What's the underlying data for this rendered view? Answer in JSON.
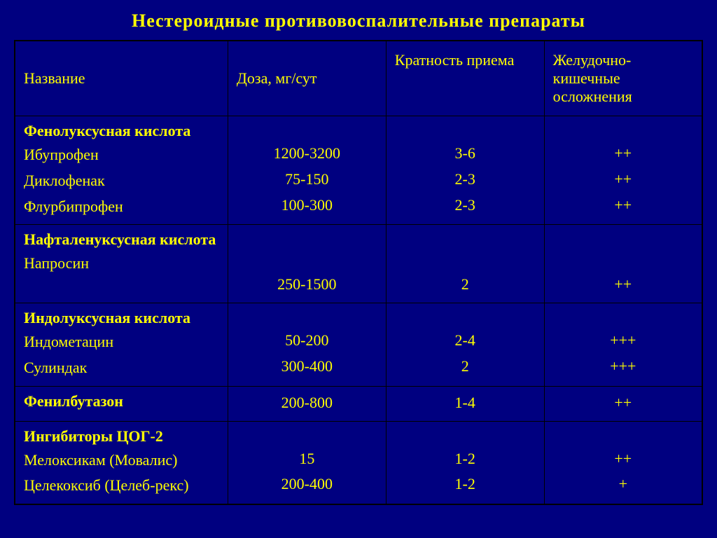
{
  "slide": {
    "title": "Нестероидные противовоспалительные препараты",
    "background_color": "#000080",
    "text_color": "#ffff00",
    "border_color": "#000000",
    "title_fontsize": 26,
    "cell_fontsize": 22,
    "font_family": "Times New Roman"
  },
  "table": {
    "columns": [
      {
        "key": "name",
        "label": "Название",
        "width_pct": 31,
        "align": "left"
      },
      {
        "key": "dose",
        "label": "Доза, мг/сут",
        "width_pct": 23,
        "align": "center"
      },
      {
        "key": "freq",
        "label": "Кратность приема",
        "width_pct": 23,
        "align": "center"
      },
      {
        "key": "gi",
        "label": "Желудочно-кишечные осложнения",
        "width_pct": 23,
        "align": "center"
      }
    ],
    "groups": [
      {
        "header": "Фенолуксусная кислота",
        "header_bold": true,
        "drugs": [
          {
            "name": "Ибупрофен",
            "dose": "1200-3200",
            "freq": "3-6",
            "gi": "++"
          },
          {
            "name": "Диклофенак",
            "dose": "75-150",
            "freq": "2-3",
            "gi": "++"
          },
          {
            "name": "Флурбипрофен",
            "dose": "100-300",
            "freq": "2-3",
            "gi": "++"
          }
        ]
      },
      {
        "header": "Нафталенуксусная кислота",
        "header_bold": true,
        "bottom_align": true,
        "drugs": [
          {
            "name": "Напросин",
            "dose": "250-1500",
            "freq": "2",
            "gi": "++"
          }
        ]
      },
      {
        "header": "Индолуксусная кислота",
        "header_bold": true,
        "drugs": [
          {
            "name": "Индометацин",
            "dose": "50-200",
            "freq": "2-4",
            "gi": "+++"
          },
          {
            "name": "Сулиндак",
            "dose": "300-400",
            "freq": "2",
            "gi": "+++"
          }
        ]
      },
      {
        "header": "Фенилбутазон",
        "header_bold": true,
        "single_row": true,
        "drugs": [
          {
            "name": "",
            "dose": "200-800",
            "freq": "1-4",
            "gi": "++"
          }
        ]
      },
      {
        "header": "Ингибиторы ЦОГ-2",
        "header_bold": true,
        "drugs": [
          {
            "name": "Мелоксикам (Мовалис)",
            "dose": "15",
            "freq": "1-2",
            "gi": "++"
          },
          {
            "name": "Целекоксиб (Целеб-рекс)",
            "dose": "200-400",
            "freq": "1-2",
            "gi": "+"
          }
        ]
      }
    ]
  }
}
